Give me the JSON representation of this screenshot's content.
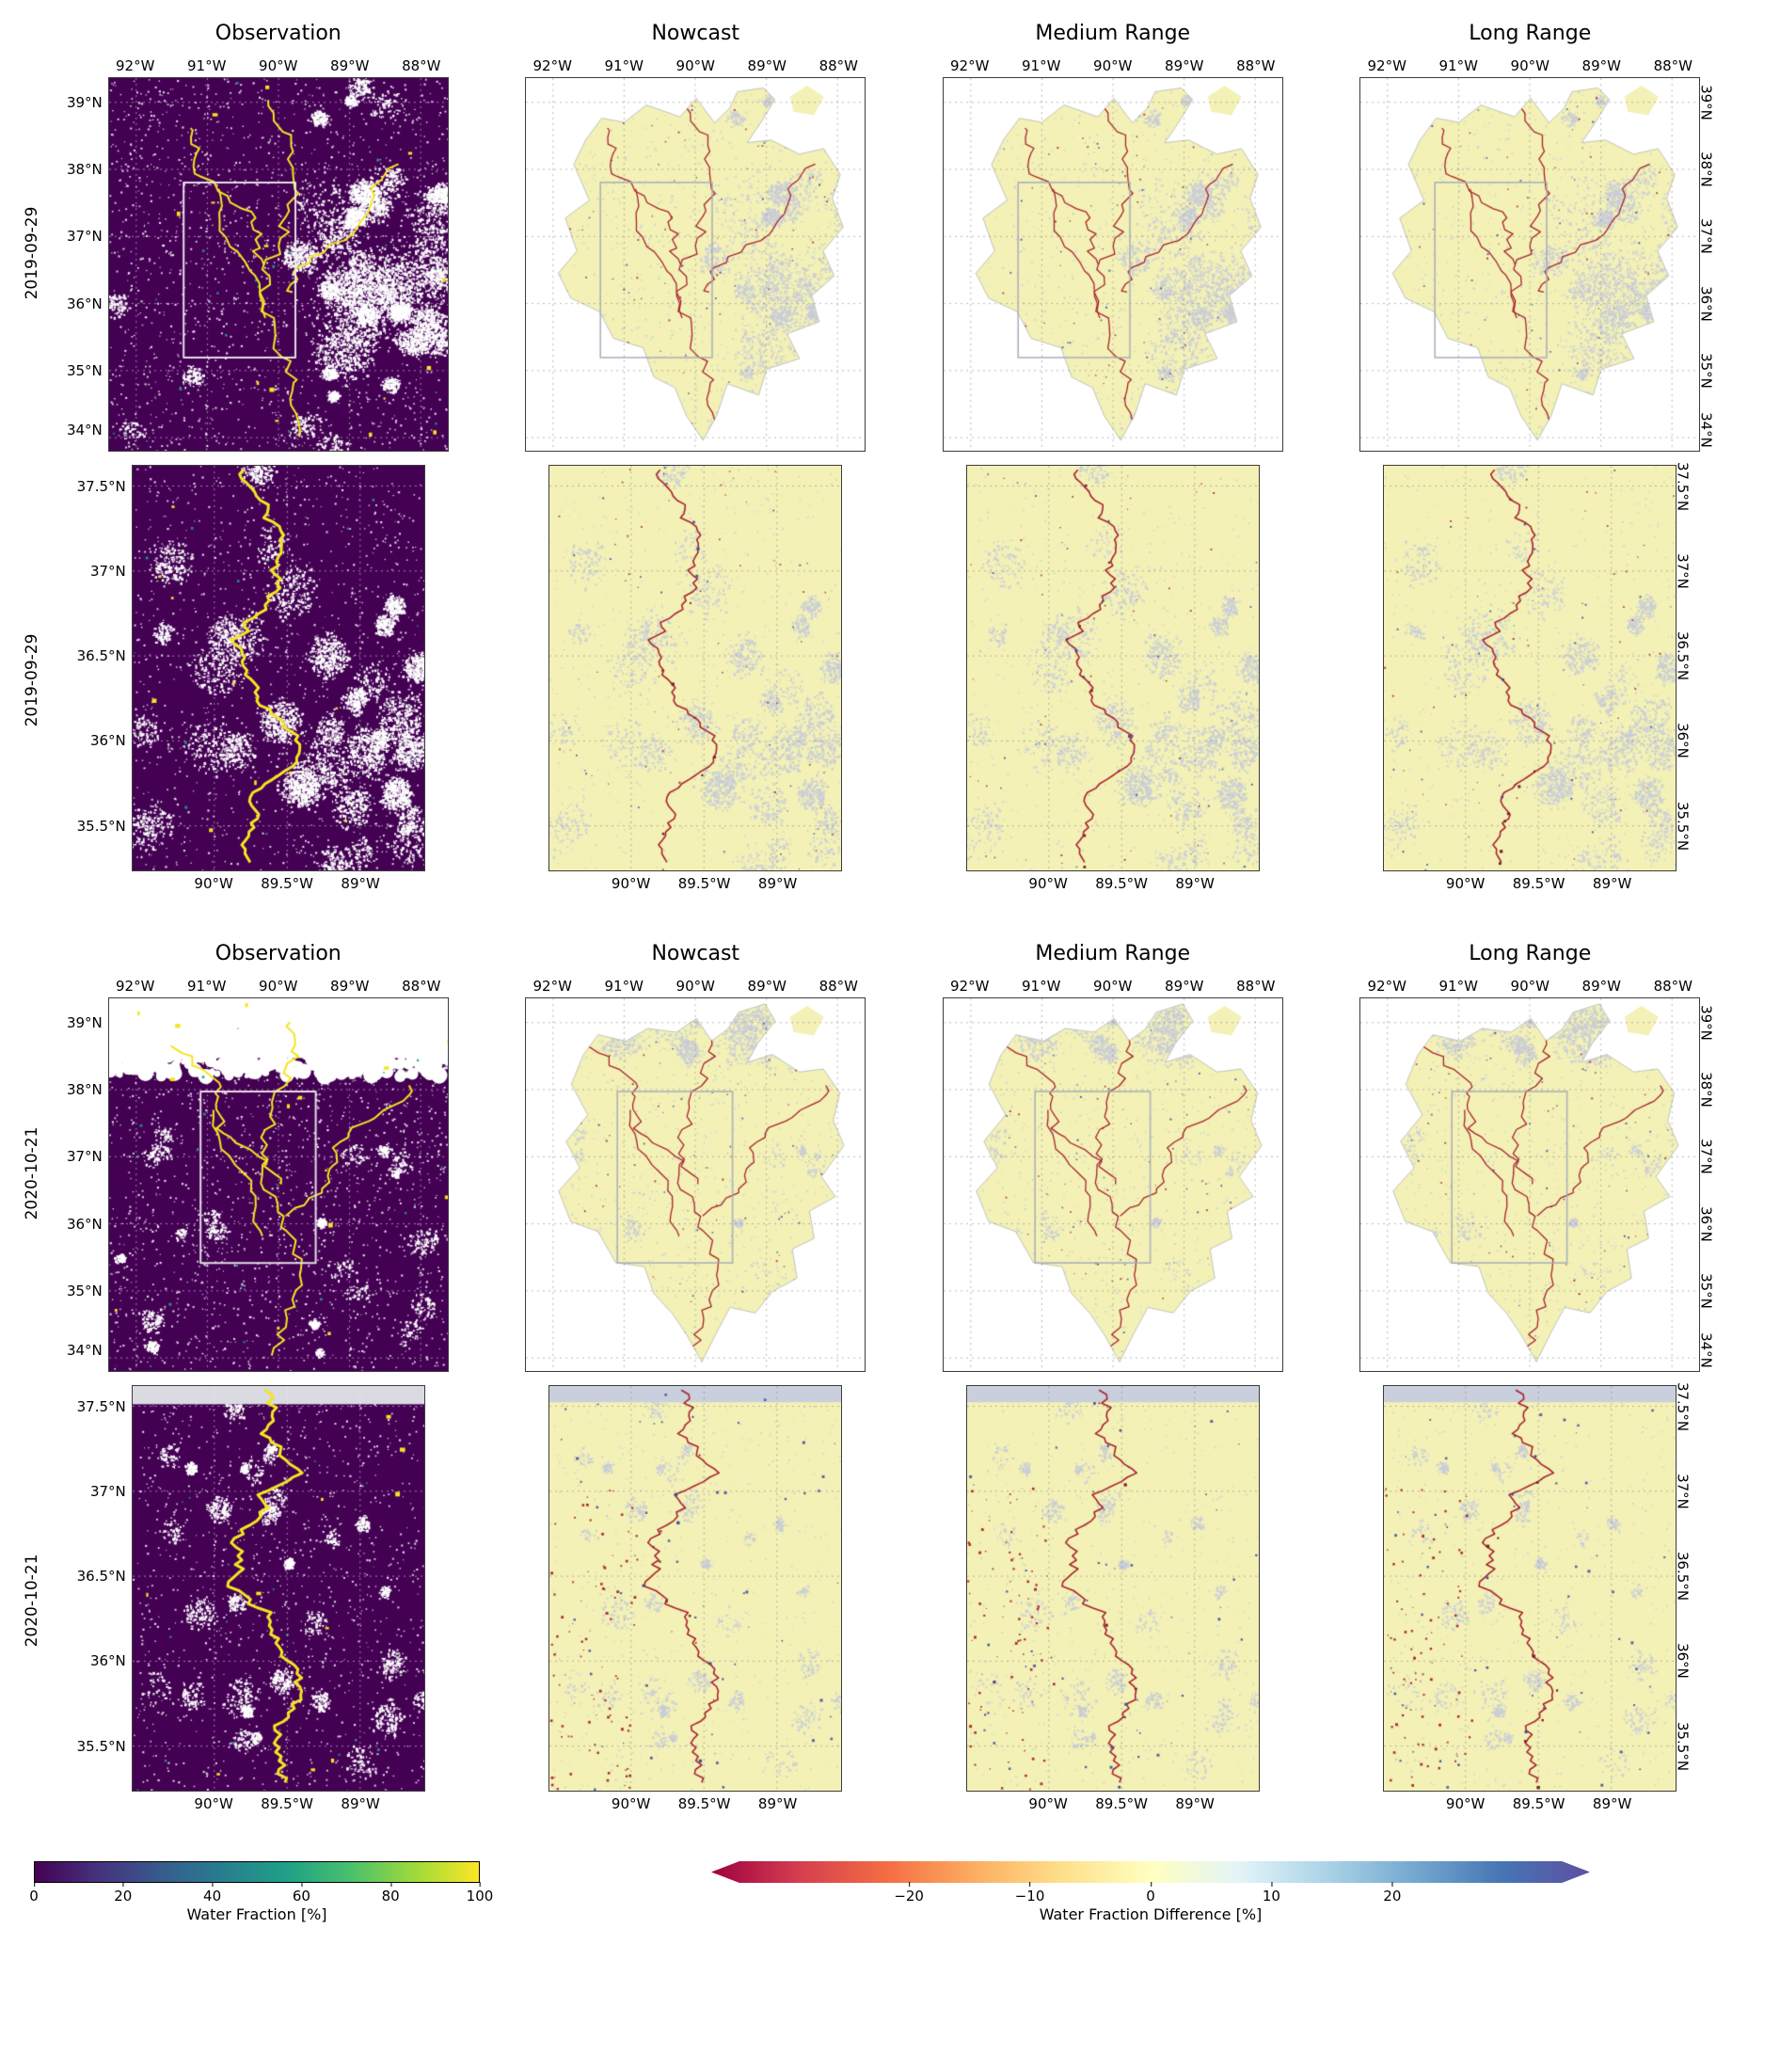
{
  "figure": {
    "columns": [
      "Observation",
      "Nowcast",
      "Medium Range",
      "Long Range"
    ],
    "row_labels": [
      "2019-09-29",
      "2019-09-29",
      "2020-10-21",
      "2020-10-21"
    ],
    "axes": {
      "lon_wide": [
        "92°W",
        "91°W",
        "90°W",
        "89°W",
        "88°W"
      ],
      "lat_wide": [
        "39°N",
        "38°N",
        "37°N",
        "36°N",
        "35°N",
        "34°N"
      ],
      "lon_zoom": [
        "90°W",
        "89.5°W",
        "89°W"
      ],
      "lat_zoom": [
        "37.5°N",
        "37°N",
        "36.5°N",
        "36°N",
        "35.5°N"
      ]
    },
    "colorbars": {
      "water_fraction": {
        "label": "Water Fraction [%]",
        "ticks": [
          "0",
          "20",
          "40",
          "60",
          "80",
          "100"
        ],
        "stops": [
          "#440154",
          "#46327e",
          "#365c8d",
          "#277f8e",
          "#1fa187",
          "#4ac16d",
          "#9fda3a",
          "#fde725"
        ]
      },
      "water_fraction_difference": {
        "label": "Water Fraction Difference [%]",
        "ticks": [
          "−20",
          "−10",
          "0",
          "10",
          "20"
        ],
        "stops": [
          "#9e0142",
          "#d53e4f",
          "#f46d43",
          "#fdae61",
          "#fee08b",
          "#ffffbf",
          "#e3f4f8",
          "#abd3e6",
          "#74a9cf",
          "#4575b4",
          "#5e4fa2"
        ]
      }
    },
    "map_colors": {
      "observation_background": "#440154",
      "observation_water": "#f3e622",
      "cloud_mask": "#ffffff",
      "forecast_background": "#f3f1b6",
      "forecast_river": "#a8222e",
      "masked_speckle": "#c8ccd8",
      "positive_diff": "#3d4f9e",
      "negative_diff": "#a8222e"
    }
  }
}
